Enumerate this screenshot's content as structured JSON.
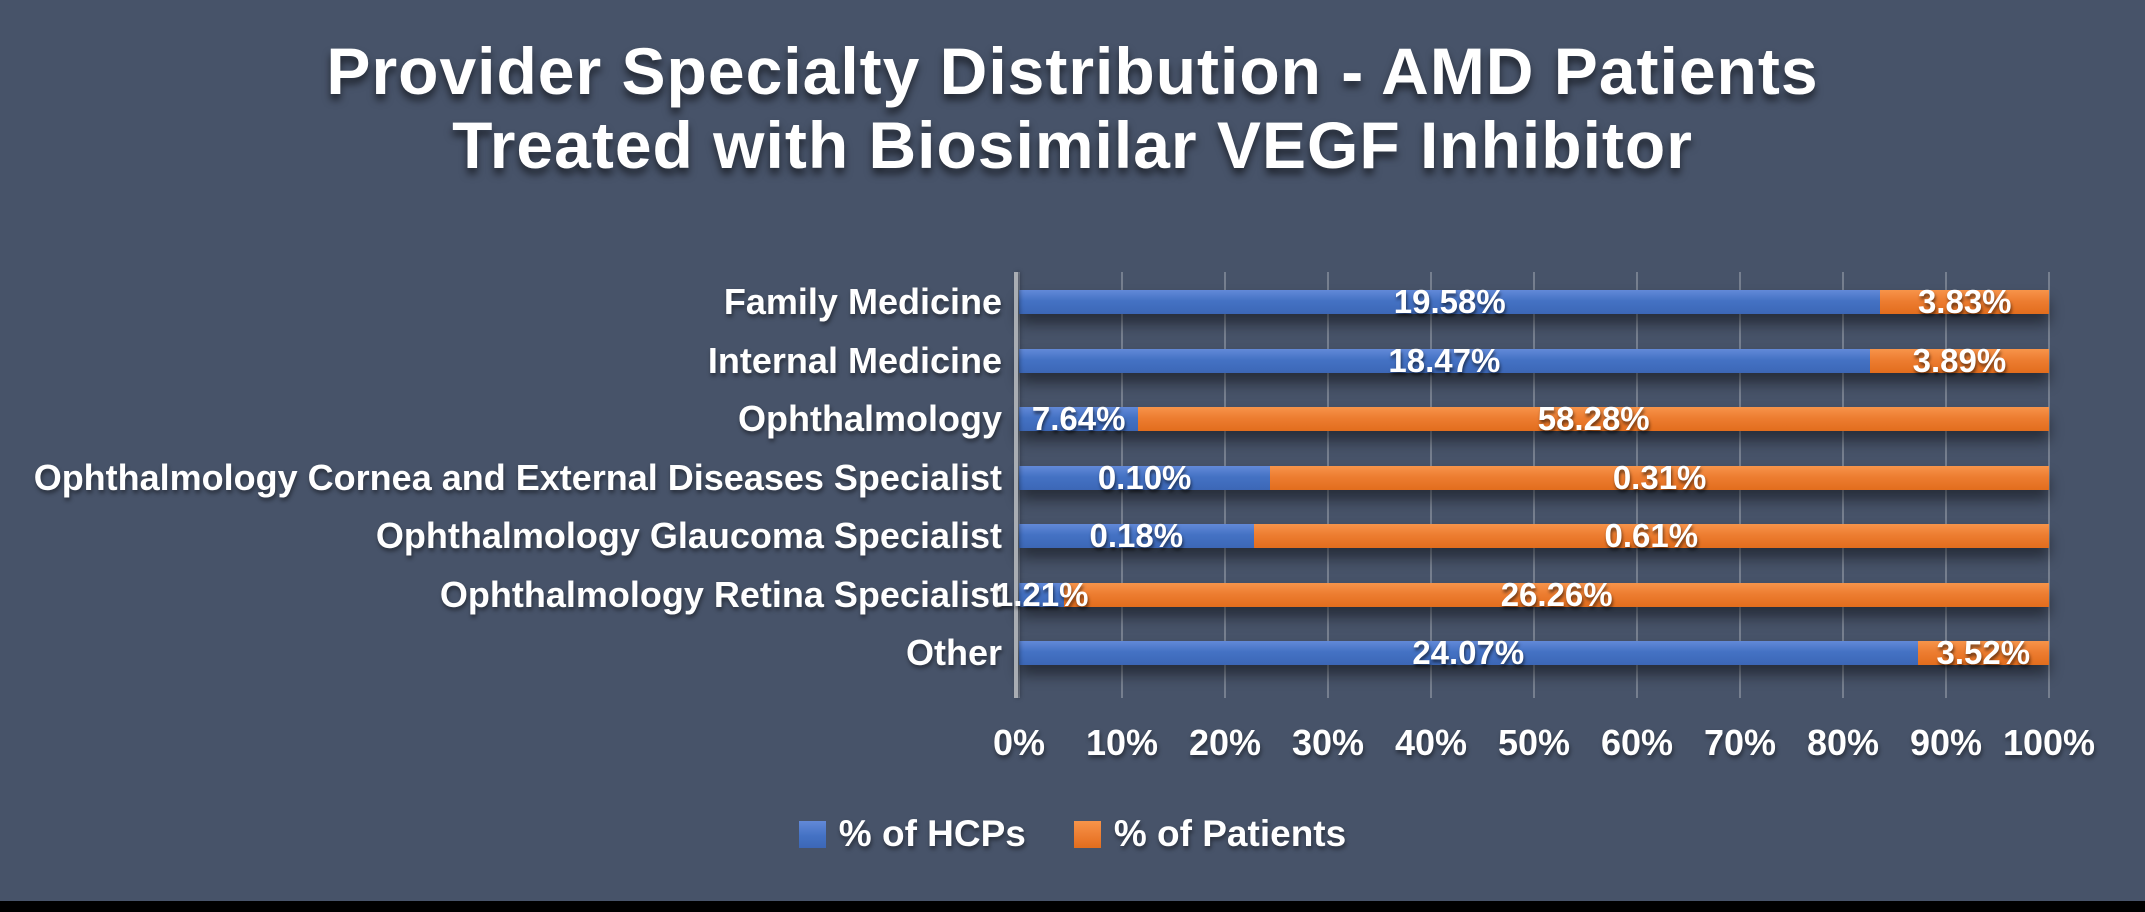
{
  "title": {
    "lines": [
      "Provider Specialty Distribution - AMD Patients",
      "Treated with Biosimilar VEGF Inhibitor"
    ]
  },
  "colors": {
    "background": "#475369",
    "hcp_blue": "#4472C4",
    "hcp_blue_light": "#6289D8",
    "hcp_blue_dark": "#3C67B6",
    "patients_orange": "#ED7D31",
    "patients_orange_light": "#F7944A",
    "patients_orange_dark": "#E26D1D",
    "axis_line": "#A9ADB3",
    "text": "#FFFFFF"
  },
  "chart_data": {
    "type": "bar",
    "subtype": "horizontal-100pct-stacked",
    "title": "Provider Specialty Distribution - AMD Patients Treated with Biosimilar VEGF Inhibitor",
    "categories": [
      "Family Medicine",
      "Internal Medicine",
      "Ophthalmology",
      "Ophthalmology Cornea and External Diseases Specialist",
      "Ophthalmology Glaucoma Specialist",
      "Ophthalmology Retina Specialist",
      "Other"
    ],
    "series": [
      {
        "name": "% of HCPs",
        "color": "#4472C4",
        "values": [
          19.58,
          18.47,
          7.64,
          0.1,
          0.18,
          1.21,
          24.07
        ],
        "labels": [
          "19.58%",
          "18.47%",
          "7.64%",
          "0.10%",
          "0.18%",
          "1.21%",
          "24.07%"
        ]
      },
      {
        "name": "% of Patients",
        "color": "#ED7D31",
        "values": [
          3.83,
          3.89,
          58.28,
          0.31,
          0.61,
          26.26,
          3.52
        ],
        "labels": [
          "3.83%",
          "3.89%",
          "58.28%",
          "0.31%",
          "0.61%",
          "26.26%",
          "3.52%"
        ]
      }
    ],
    "x_axis": {
      "min": 0,
      "max": 100,
      "tick_labels": [
        "0%",
        "10%",
        "20%",
        "30%",
        "40%",
        "50%",
        "60%",
        "70%",
        "80%",
        "90%",
        "100%"
      ],
      "gridlines": true
    },
    "legend": {
      "position": "bottom",
      "entries": [
        "% of HCPs",
        "% of Patients"
      ]
    },
    "normalized_to_100pct": true,
    "bar_value_labels_shown": true
  }
}
